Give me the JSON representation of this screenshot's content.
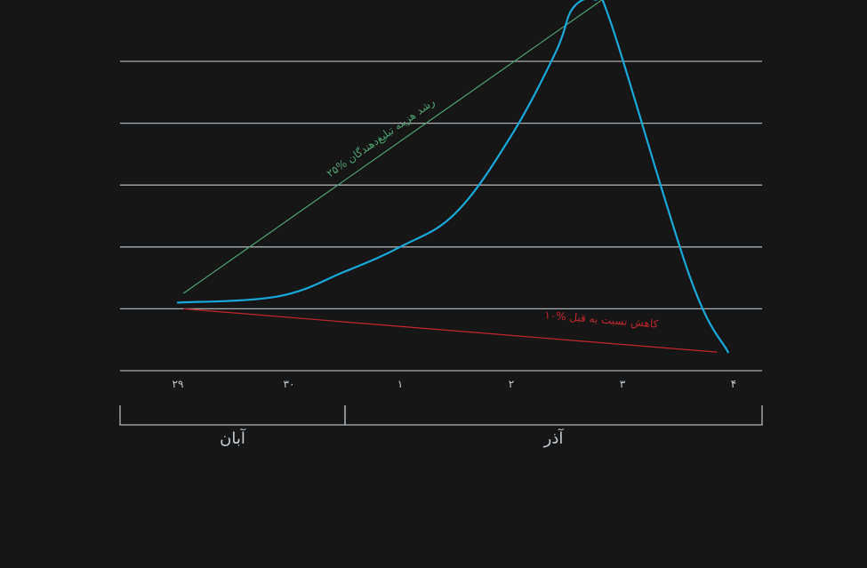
{
  "chart_data": {
    "type": "line",
    "categories": [
      "۲۹",
      "۳۰",
      "۱",
      "۲",
      "۳",
      "۴"
    ],
    "series": [
      {
        "color": "#1aa9d6",
        "points": [
          [
            0,
            0.1
          ],
          [
            0.9,
            0.2
          ],
          [
            1.5,
            0.6
          ],
          [
            2.0,
            1.0
          ],
          [
            2.5,
            1.55
          ],
          [
            3.0,
            2.8
          ],
          [
            3.4,
            4.15
          ],
          [
            3.55,
            4.85
          ],
          [
            3.75,
            5.0
          ],
          [
            3.9,
            4.6
          ],
          [
            4.6,
            0.55
          ],
          [
            4.95,
            -0.7
          ]
        ]
      }
    ],
    "ylim": [
      -1,
      5
    ],
    "grid_y": [
      0,
      1,
      2,
      3,
      4,
      5
    ],
    "annotations": [
      {
        "text": "۲۵% رشد هزینه تبلیغ‌دهندگان",
        "color": "#4fa06f",
        "line": [
          [
            0.05,
            0.25
          ],
          [
            3.9,
            5.1
          ]
        ]
      },
      {
        "text": "۱۰% کاهش نسبت به قبل",
        "color": "#c0272d",
        "line": [
          [
            0.05,
            0.0
          ],
          [
            4.85,
            -0.7
          ]
        ]
      }
    ],
    "month_groups": [
      {
        "label": "آبان",
        "from": 0,
        "to": 1.5
      },
      {
        "label": "آذر",
        "from": 1.5,
        "to": 5
      }
    ]
  }
}
